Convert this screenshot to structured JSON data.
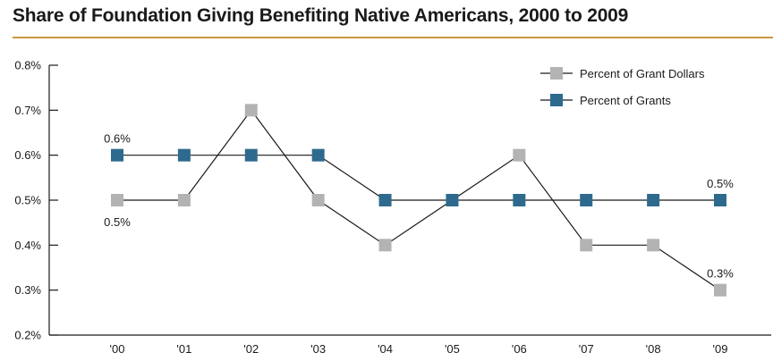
{
  "title": "Share of Foundation Giving Benefiting Native Americans, 2000 to 2009",
  "colors": {
    "accent_rule": "#c9973f",
    "grant_dollars": "#b3b3b3",
    "grants": "#2e6a8e",
    "line": "#1a1a1a"
  },
  "chart_data": {
    "type": "line",
    "title": "Share of Foundation Giving Benefiting Native Americans, 2000 to 2009",
    "categories": [
      "'00",
      "'01",
      "'02",
      "'03",
      "'04",
      "'05",
      "'06",
      "'07",
      "'08",
      "'09"
    ],
    "ylim": [
      0.2,
      0.8
    ],
    "yticks": [
      "0.2%",
      "0.3%",
      "0.4%",
      "0.5%",
      "0.6%",
      "0.7%",
      "0.8%"
    ],
    "ytick_values": [
      0.2,
      0.3,
      0.4,
      0.5,
      0.6,
      0.7,
      0.8
    ],
    "grid": false,
    "legend_position": "top-right",
    "series": [
      {
        "name": "Percent of Grant Dollars",
        "color": "#b3b3b3",
        "values": [
          0.5,
          0.5,
          0.7,
          0.5,
          0.4,
          0.5,
          0.6,
          0.4,
          0.4,
          0.3
        ]
      },
      {
        "name": "Percent of Grants",
        "color": "#2e6a8e",
        "values": [
          0.6,
          0.6,
          0.6,
          0.6,
          0.5,
          0.5,
          0.5,
          0.5,
          0.5,
          0.5
        ]
      }
    ],
    "annotations": [
      {
        "text": "0.6%",
        "series": 1,
        "index": 0,
        "placement": "above"
      },
      {
        "text": "0.5%",
        "series": 0,
        "index": 0,
        "placement": "below"
      },
      {
        "text": "0.5%",
        "series": 1,
        "index": 9,
        "placement": "above"
      },
      {
        "text": "0.3%",
        "series": 0,
        "index": 9,
        "placement": "above"
      }
    ]
  }
}
